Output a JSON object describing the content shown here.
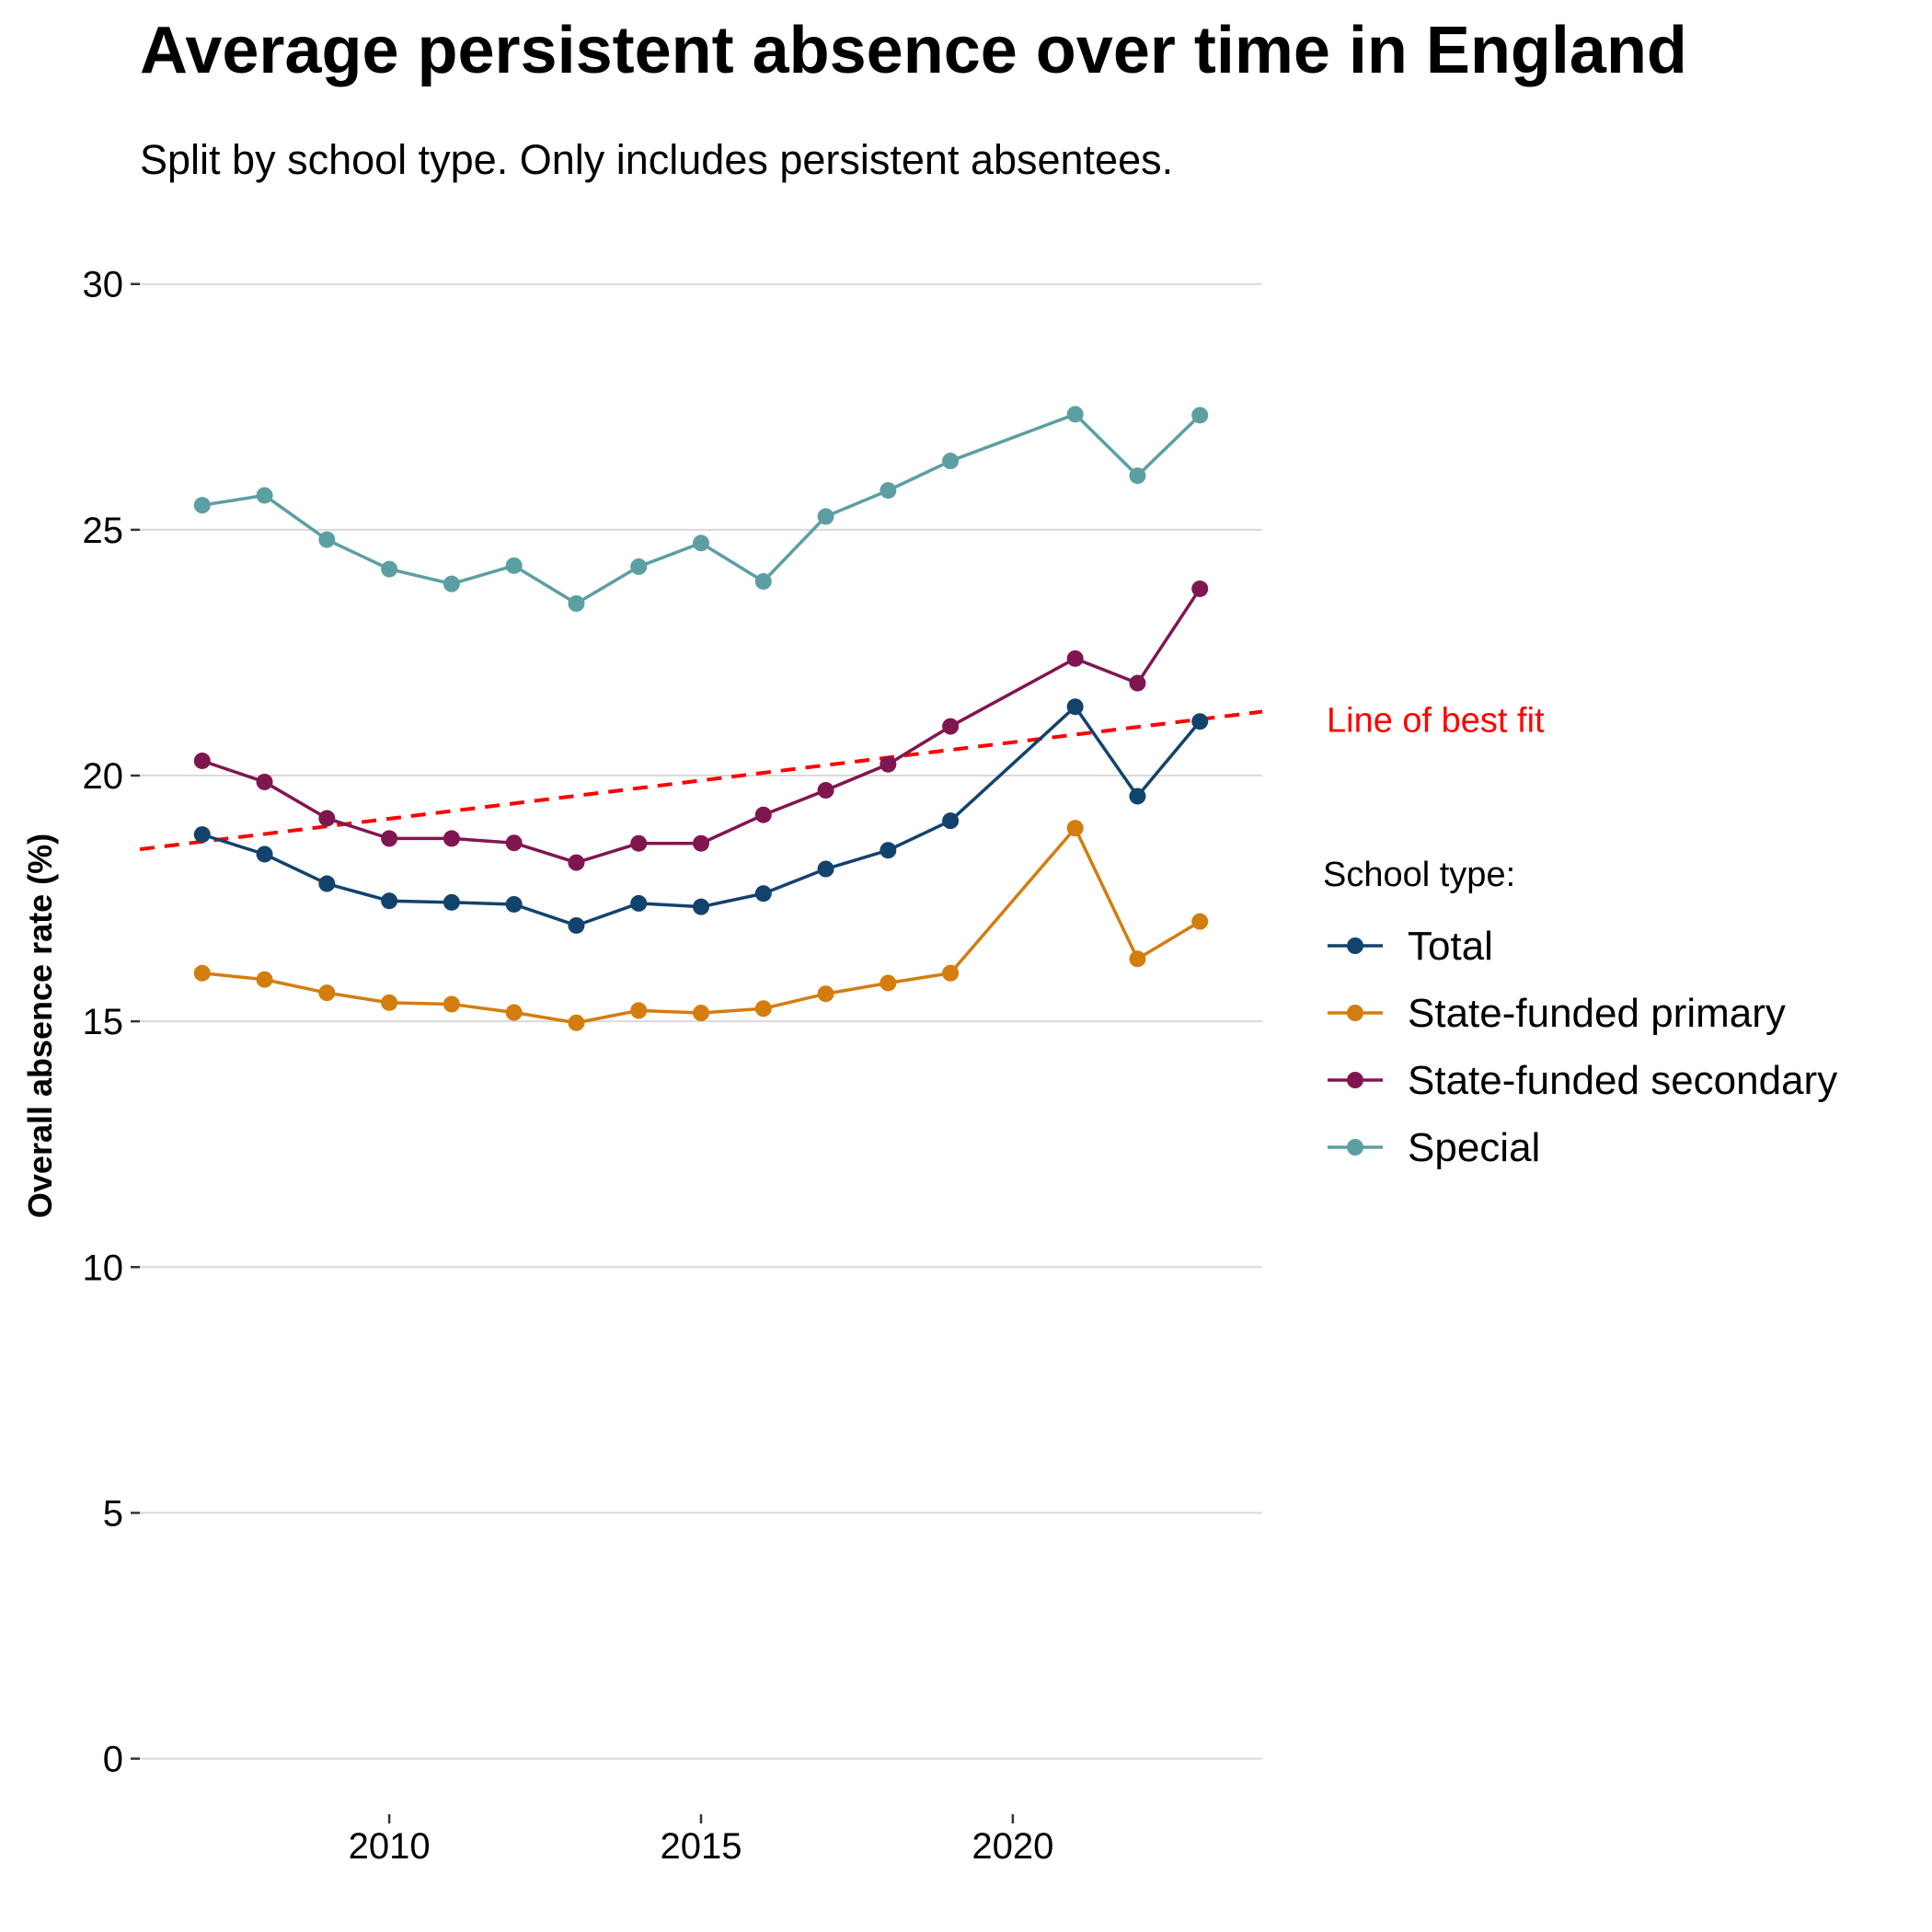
{
  "chart_data": {
    "type": "line",
    "title": "Average persistent absence over time in England",
    "subtitle": "Split by school type. Only includes persistent absentees.",
    "xlabel": "",
    "ylabel": "Overall absence rate (%)",
    "xlim": [
      2006,
      2024
    ],
    "ylim": [
      -1,
      30.5
    ],
    "x_ticks": [
      2010,
      2015,
      2020
    ],
    "y_ticks": [
      0,
      5,
      10,
      15,
      20,
      25,
      30
    ],
    "grid": "horizontal",
    "legend": {
      "title": "School type:",
      "position": "right"
    },
    "series": [
      {
        "name": "Total",
        "color": "#12436D",
        "x": [
          2007,
          2008,
          2009,
          2010,
          2011,
          2012,
          2013,
          2014,
          2015,
          2016,
          2017,
          2018,
          2019,
          2021,
          2022,
          2023
        ],
        "y": [
          18.8,
          18.4,
          17.8,
          17.45,
          17.42,
          17.38,
          16.95,
          17.4,
          17.33,
          17.6,
          18.1,
          18.48,
          19.08,
          21.4,
          19.58,
          21.1
        ]
      },
      {
        "name": "State-funded primary",
        "color": "#D37D0F",
        "x": [
          2007,
          2008,
          2009,
          2010,
          2011,
          2012,
          2013,
          2014,
          2015,
          2016,
          2017,
          2018,
          2019,
          2021,
          2022,
          2023
        ],
        "y": [
          15.98,
          15.85,
          15.58,
          15.38,
          15.35,
          15.18,
          14.97,
          15.22,
          15.17,
          15.26,
          15.56,
          15.78,
          15.98,
          18.93,
          16.27,
          17.03
        ]
      },
      {
        "name": "State-funded secondary",
        "color": "#801650",
        "x": [
          2007,
          2008,
          2009,
          2010,
          2011,
          2012,
          2013,
          2014,
          2015,
          2016,
          2017,
          2018,
          2019,
          2021,
          2022,
          2023
        ],
        "y": [
          20.3,
          19.87,
          19.13,
          18.72,
          18.72,
          18.63,
          18.23,
          18.62,
          18.62,
          19.2,
          19.7,
          20.23,
          21.0,
          22.38,
          21.88,
          23.8
        ]
      },
      {
        "name": "Special",
        "color": "#5C9FA3",
        "x": [
          2007,
          2008,
          2009,
          2010,
          2011,
          2012,
          2013,
          2014,
          2015,
          2016,
          2017,
          2018,
          2019,
          2021,
          2022,
          2023
        ],
        "y": [
          25.5,
          25.7,
          24.8,
          24.2,
          23.9,
          24.27,
          23.5,
          24.25,
          24.73,
          23.95,
          25.27,
          25.8,
          26.4,
          27.35,
          26.1,
          27.33
        ]
      }
    ],
    "trendline": {
      "label": "Line of best fit",
      "color": "#FF0000",
      "style": "dashed",
      "x": [
        2006,
        2024
      ],
      "y": [
        18.5,
        21.3
      ]
    }
  }
}
